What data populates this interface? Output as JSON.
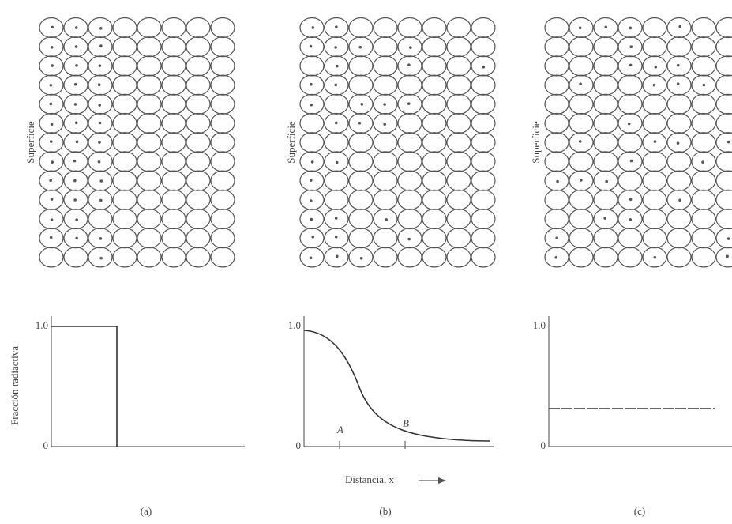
{
  "panels": [
    {
      "side_label": "Superficie",
      "tick_top": "1.0",
      "tick_bottom": "0",
      "caption": "(a)"
    },
    {
      "side_label": "Superficie",
      "tick_top": "1.0",
      "tick_bottom": "0",
      "caption": "(b)"
    },
    {
      "side_label": "Superficie",
      "tick_top": "1.0",
      "tick_bottom": "0",
      "caption": "(c)"
    }
  ],
  "y_axis_label": "Fracción radiactiva",
  "markers": [
    "A",
    "B"
  ],
  "x_axis_label": "Distancia, x"
}
